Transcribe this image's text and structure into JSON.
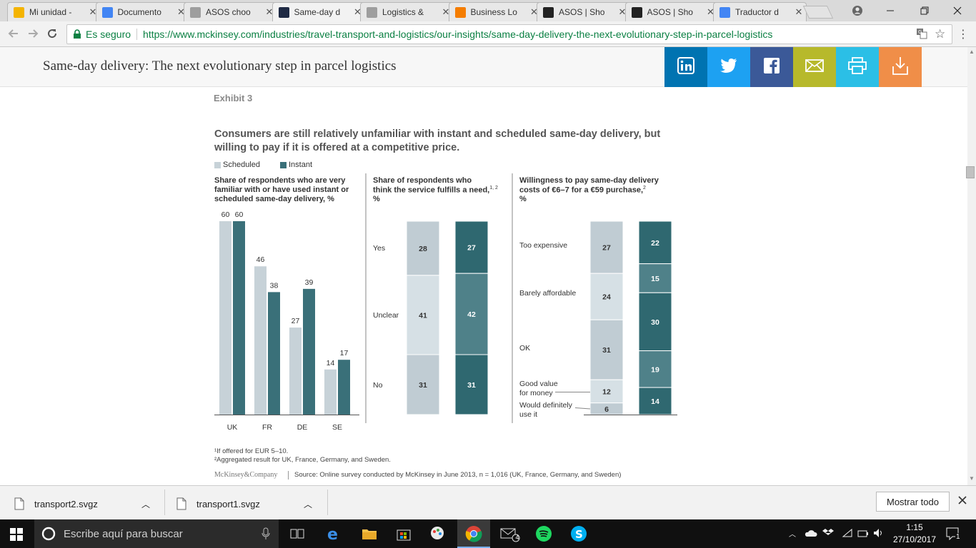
{
  "tabs": [
    {
      "title": "Mi unidad -",
      "icon": "google-drive-icon",
      "color": "#f4b400"
    },
    {
      "title": "Documento",
      "icon": "google-docs-icon",
      "color": "#4285f4"
    },
    {
      "title": "ASOS choo",
      "icon": "document-icon",
      "color": "#9e9e9e"
    },
    {
      "title": "Same-day d",
      "icon": "mckinsey-icon",
      "color": "#1f2a44"
    },
    {
      "title": "Logistics &",
      "icon": "document-icon",
      "color": "#9e9e9e"
    },
    {
      "title": "Business Lo",
      "icon": "blogger-icon",
      "color": "#f57d00"
    },
    {
      "title": "ASOS | Sho",
      "icon": "asos-icon",
      "color": "#222222"
    },
    {
      "title": "ASOS | Sho",
      "icon": "asos-icon",
      "color": "#222222"
    },
    {
      "title": "Traductor d",
      "icon": "google-translate-icon",
      "color": "#4285f4"
    }
  ],
  "omnibox": {
    "secure_label": "Es seguro",
    "url": "https://www.mckinsey.com/industries/travel-transport-and-logistics/our-insights/same-day-delivery-the-next-evolutionary-step-in-parcel-logistics"
  },
  "site": {
    "title": "Same-day delivery: The next evolutionary step in parcel logistics",
    "share": [
      {
        "icon": "linkedin-icon",
        "color": "#0073b1"
      },
      {
        "icon": "twitter-icon",
        "color": "#1da1f2"
      },
      {
        "icon": "facebook-icon",
        "color": "#3b5998"
      },
      {
        "icon": "mail-icon",
        "color": "#b7b92b"
      },
      {
        "icon": "print-icon",
        "color": "#2bbfe6"
      },
      {
        "icon": "download-icon",
        "color": "#f08e48"
      }
    ]
  },
  "exhibit": {
    "label": "Exhibit 3",
    "heading_line1": "Consumers are still relatively unfamiliar with instant and scheduled same-day delivery, but",
    "heading_line2": "willing to pay if it is offered at a competitive price.",
    "legend": [
      {
        "name": "Scheduled",
        "color": "#c7d2d8"
      },
      {
        "name": "Instant",
        "color": "#3a7079"
      }
    ],
    "footnote1": "¹If offered for EUR 5–10.",
    "footnote2": "²Aggregated result for UK, France, Germany, and Sweden.",
    "brand": "McKinsey&Company",
    "source": "Source: Online survey conducted by McKinsey in June 2013, n = 1,016 (UK, France, Germany, and Sweden)"
  },
  "chart_data": [
    {
      "type": "bar",
      "title_lines": [
        "Share of respondents who are very",
        "familiar with or have used instant or",
        "scheduled same-day delivery, %"
      ],
      "categories": [
        "UK",
        "FR",
        "DE",
        "SE"
      ],
      "series": [
        {
          "name": "Scheduled",
          "values": [
            60,
            46,
            27,
            14
          ]
        },
        {
          "name": "Instant",
          "values": [
            60,
            38,
            39,
            17
          ]
        }
      ],
      "ylim": [
        0,
        60
      ]
    },
    {
      "type": "bar",
      "stacked": true,
      "percent": true,
      "title_lines": [
        "Share of respondents who",
        "think the service fulfills a need,",
        "%"
      ],
      "title_sup": "1, 2",
      "categories": [
        "Yes",
        "Unclear",
        "No"
      ],
      "series": [
        {
          "name": "Scheduled",
          "values": [
            28,
            41,
            31
          ]
        },
        {
          "name": "Instant",
          "values": [
            27,
            42,
            31
          ]
        }
      ]
    },
    {
      "type": "bar",
      "stacked": true,
      "percent": true,
      "title_lines": [
        "Willingness to pay same-day delivery",
        "costs of €6–7 for a €59 purchase,",
        "%"
      ],
      "title_sup": "2",
      "categories": [
        "Too expensive",
        "Barely affordable",
        "OK",
        "Good value for money",
        "Would definitely use it"
      ],
      "category_label_lines": [
        [
          "Too expensive"
        ],
        [
          "Barely affordable"
        ],
        [
          "OK"
        ],
        [
          "Good value",
          "for money"
        ],
        [
          "Would definitely",
          "use it"
        ]
      ],
      "series": [
        {
          "name": "Scheduled",
          "values": [
            27,
            24,
            31,
            12,
            6
          ]
        },
        {
          "name": "Instant",
          "values": [
            22,
            15,
            30,
            19,
            14
          ]
        }
      ]
    }
  ],
  "downloads": [
    {
      "name": "transport2.svgz"
    },
    {
      "name": "transport1.svgz"
    }
  ],
  "download_bar": {
    "show_all": "Mostrar todo"
  },
  "taskbar": {
    "search_placeholder": "Escribe aquí para buscar",
    "time": "1:15",
    "date": "27/10/2017",
    "mail_badge": "4",
    "notifications": "1"
  }
}
